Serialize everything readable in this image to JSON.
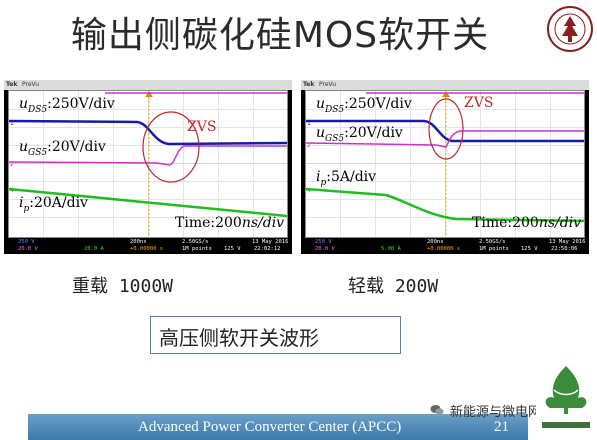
{
  "title": "输出侧碳化硅MOS软开关",
  "scope_left": {
    "header_brand": "Tek",
    "header_mode": "PreVu",
    "vds_label": "u_DS5:250V/div",
    "vds_main": "u",
    "vds_sub": "DS5",
    "vds_rest": ":250V/div",
    "vgs_main": "u",
    "vgs_sub": "GS5",
    "vgs_rest": ":20V/div",
    "ip_main": "i",
    "ip_sub": "p",
    "ip_rest": ":20A/div",
    "time_prefix": "Time:200",
    "time_unit": "ns/div",
    "zvs": "ZVS",
    "foot_ch1": "250 V",
    "foot_ch2": "20.0 V",
    "foot_ch3": "20.0 A",
    "foot_timebase": "200ns",
    "foot_sample": "2.50GS/s",
    "foot_points": "1M points",
    "foot_trigger": "125 V",
    "foot_date": "13 May 2016",
    "foot_time": "22:02:12",
    "foot_offset": "+0.00000 s"
  },
  "scope_right": {
    "header_brand": "Tek",
    "header_mode": "PreVu",
    "vds_main": "u",
    "vds_sub": "DS5",
    "vds_rest": ":250V/div",
    "vgs_main": "u",
    "vgs_sub": "GS5",
    "vgs_rest": ":20V/div",
    "ip_main": "i",
    "ip_sub": "p",
    "ip_rest": ":5A/div",
    "time_prefix": "Time:200",
    "time_unit": "ns/div",
    "zvs": "ZVS",
    "foot_ch1": "250 V",
    "foot_ch2": "20.0 V",
    "foot_ch3": "5.00 A",
    "foot_timebase": "200ns",
    "foot_sample": "2.50GS/s",
    "foot_points": "1M points",
    "foot_trigger": "125 V",
    "foot_date": "13 May 2016",
    "foot_time": "22:50:06",
    "foot_offset": "+0.00000 s"
  },
  "caption_left": "重载 1000W",
  "caption_right": "轻载 200W",
  "subtitle": "高压侧软开关波形",
  "footer_center": "Advanced Power Converter Center (APCC)",
  "page_number": "21",
  "watermark": "新能源与微电网技术",
  "colors": {
    "vds": "#1a1aa8",
    "vgs": "#cc33cc",
    "ip": "#22bb22",
    "zvs": "#c0262a",
    "footer": "#4a86b5"
  }
}
